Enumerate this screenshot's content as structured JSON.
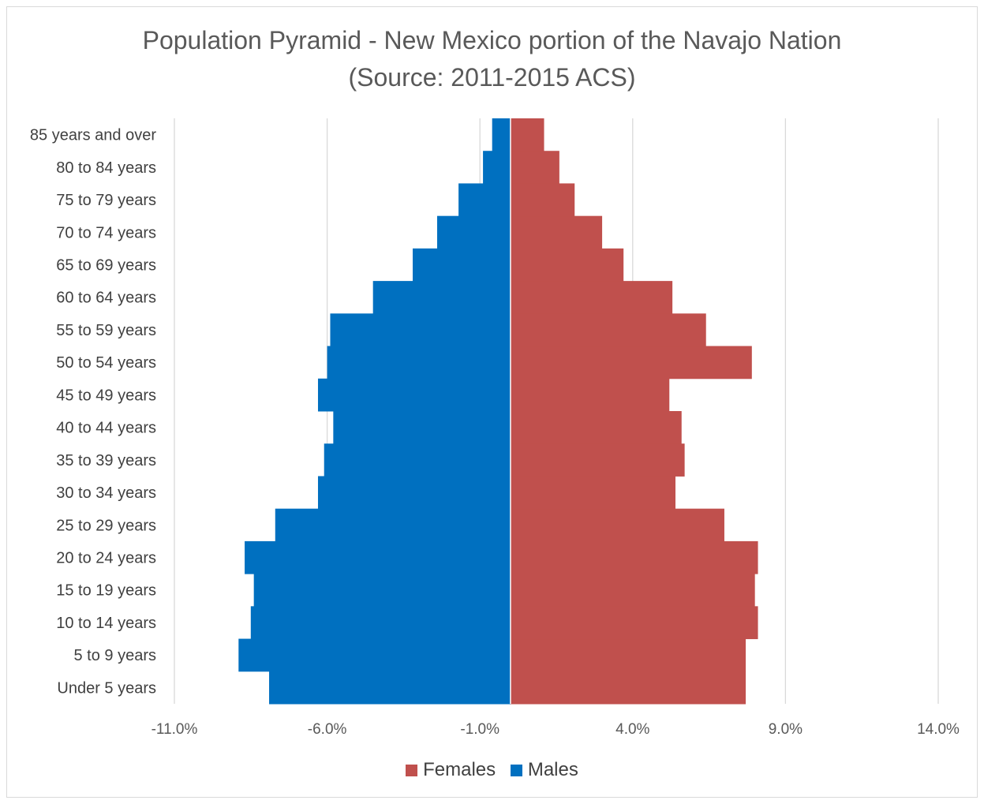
{
  "chart_data": {
    "type": "bar",
    "orientation": "horizontal",
    "title": "Population Pyramid - New Mexico portion of the Navajo Nation",
    "subtitle": "(Source: 2011-2015 ACS)",
    "xlabel": "",
    "ylabel": "",
    "xlim": [
      -11.0,
      14.0
    ],
    "xticks": [
      "-11.0%",
      "-6.0%",
      "-1.0%",
      "4.0%",
      "9.0%",
      "14.0%"
    ],
    "grid": true,
    "legend_position": "bottom",
    "categories": [
      "Under 5 years",
      "5 to 9 years",
      "10 to 14 years",
      "15 to 19 years",
      "20 to 24 years",
      "25 to 29 years",
      "30 to 34 years",
      "35 to 39 years",
      "40 to 44 years",
      "45 to 49 years",
      "50 to 54 years",
      "55 to 59 years",
      "60 to 64 years",
      "65 to 69 years",
      "70 to 74 years",
      "75 to 79 years",
      "80 to 84 years",
      "85 years and over"
    ],
    "series": [
      {
        "name": "Females",
        "color": "#C0504D",
        "values": [
          7.7,
          7.7,
          8.1,
          8.0,
          8.1,
          7.0,
          5.4,
          5.7,
          5.6,
          5.2,
          7.9,
          6.4,
          5.3,
          3.7,
          3.0,
          2.1,
          1.6,
          1.1
        ]
      },
      {
        "name": "Males",
        "color": "#0070C0",
        "values": [
          -7.9,
          -8.9,
          -8.5,
          -8.4,
          -8.7,
          -7.7,
          -6.3,
          -6.1,
          -5.8,
          -6.3,
          -6.0,
          -5.9,
          -4.5,
          -3.2,
          -2.4,
          -1.7,
          -0.9,
          -0.6
        ]
      }
    ]
  }
}
